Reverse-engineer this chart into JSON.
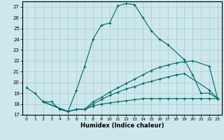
{
  "xlabel": "Humidex (Indice chaleur)",
  "bg_color": "#cce8ec",
  "grid_color": "#aaccd0",
  "line_color": "#006666",
  "xlim": [
    -0.5,
    23.5
  ],
  "ylim": [
    17,
    27.5
  ],
  "xticks": [
    0,
    1,
    2,
    3,
    4,
    5,
    6,
    7,
    8,
    9,
    10,
    11,
    12,
    13,
    14,
    15,
    16,
    17,
    18,
    19,
    20,
    21,
    22,
    23
  ],
  "yticks": [
    17,
    18,
    19,
    20,
    21,
    22,
    23,
    24,
    25,
    26,
    27
  ],
  "series": [
    {
      "x": [
        0,
        1,
        2,
        3,
        4,
        5,
        6,
        7,
        8,
        9,
        10,
        11,
        12,
        13,
        14,
        15,
        16,
        17,
        19,
        20,
        21,
        22,
        23
      ],
      "y": [
        19.5,
        19.0,
        18.2,
        18.2,
        17.5,
        17.3,
        19.3,
        21.5,
        24.0,
        25.3,
        25.5,
        27.1,
        27.3,
        27.2,
        26.0,
        24.8,
        24.0,
        23.5,
        22.1,
        20.7,
        19.0,
        19.0,
        18.5
      ]
    },
    {
      "x": [
        2,
        5,
        6,
        7,
        8,
        9,
        10,
        11,
        12,
        13,
        14,
        15,
        16,
        17,
        18,
        19,
        20,
        22,
        23
      ],
      "y": [
        18.2,
        17.3,
        17.5,
        17.5,
        18.2,
        18.6,
        19.1,
        19.5,
        19.9,
        20.3,
        20.7,
        21.1,
        21.4,
        21.6,
        21.8,
        21.9,
        22.0,
        21.5,
        18.5
      ]
    },
    {
      "x": [
        2,
        5,
        6,
        7,
        8,
        9,
        10,
        11,
        12,
        13,
        14,
        15,
        16,
        17,
        18,
        19,
        22,
        23
      ],
      "y": [
        18.2,
        17.3,
        17.5,
        17.5,
        18.0,
        18.4,
        18.8,
        19.1,
        19.4,
        19.6,
        19.9,
        20.1,
        20.3,
        20.5,
        20.7,
        20.8,
        19.3,
        18.5
      ]
    },
    {
      "x": [
        2,
        5,
        6,
        7,
        8,
        9,
        10,
        11,
        12,
        13,
        14,
        15,
        16,
        17,
        18,
        19,
        20,
        21,
        22,
        23
      ],
      "y": [
        18.2,
        17.3,
        17.5,
        17.5,
        17.8,
        18.0,
        18.1,
        18.2,
        18.3,
        18.4,
        18.5,
        18.5,
        18.5,
        18.5,
        18.5,
        18.5,
        18.5,
        18.5,
        18.5,
        18.5
      ]
    }
  ]
}
